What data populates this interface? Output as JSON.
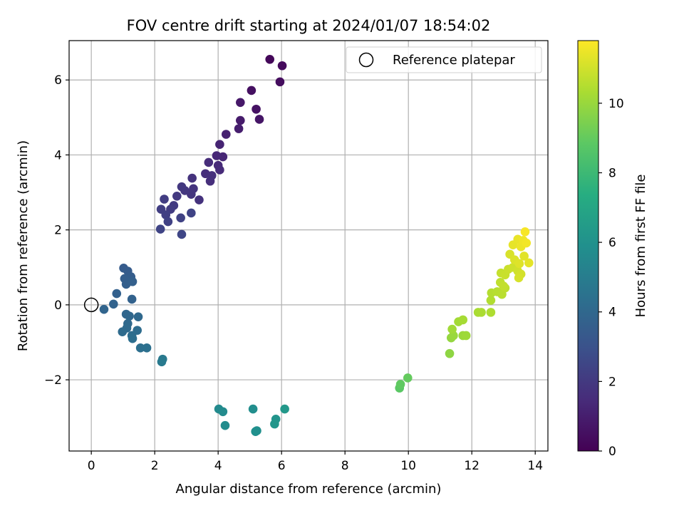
{
  "chart_data": {
    "type": "scatter",
    "title": "FOV centre drift starting at 2024/01/07 18:54:02",
    "xlabel": "Angular distance from reference (arcmin)",
    "ylabel": "Rotation from reference (arcmin)",
    "xlim": [
      -0.7,
      14.4
    ],
    "ylim": [
      -3.9,
      7.05
    ],
    "xticks": [
      0,
      2,
      4,
      6,
      8,
      10,
      12,
      14
    ],
    "yticks": [
      -2,
      0,
      2,
      4,
      6
    ],
    "xtick_labels": [
      "0",
      "2",
      "4",
      "6",
      "8",
      "10",
      "12",
      "14"
    ],
    "ytick_labels": [
      "−2",
      "0",
      "2",
      "4",
      "6"
    ],
    "grid": true,
    "legend": {
      "position": "top-right",
      "entries": [
        "Reference platepar"
      ]
    },
    "colorbar": {
      "label": "Hours from first FF file",
      "colormap": "viridis",
      "range": [
        0,
        11.8
      ],
      "ticks": [
        0,
        2,
        4,
        6,
        8,
        10
      ],
      "tick_labels": [
        "0",
        "2",
        "4",
        "6",
        "8",
        "10"
      ]
    },
    "reference_point": {
      "x": 0,
      "y": 0
    },
    "points": [
      {
        "x": 5.63,
        "y": 6.55,
        "h": 0.2
      },
      {
        "x": 6.02,
        "y": 6.38,
        "h": 0.3
      },
      {
        "x": 5.95,
        "y": 5.95,
        "h": 0.4
      },
      {
        "x": 5.05,
        "y": 5.72,
        "h": 0.5
      },
      {
        "x": 5.2,
        "y": 5.22,
        "h": 0.6
      },
      {
        "x": 5.3,
        "y": 4.95,
        "h": 0.7
      },
      {
        "x": 4.7,
        "y": 5.4,
        "h": 0.8
      },
      {
        "x": 4.7,
        "y": 4.92,
        "h": 0.9
      },
      {
        "x": 4.65,
        "y": 4.7,
        "h": 1.0
      },
      {
        "x": 4.25,
        "y": 4.55,
        "h": 1.1
      },
      {
        "x": 4.05,
        "y": 4.28,
        "h": 1.2
      },
      {
        "x": 4.15,
        "y": 3.95,
        "h": 1.3
      },
      {
        "x": 3.95,
        "y": 3.98,
        "h": 1.35
      },
      {
        "x": 4.0,
        "y": 3.72,
        "h": 1.4
      },
      {
        "x": 4.05,
        "y": 3.6,
        "h": 1.45
      },
      {
        "x": 3.7,
        "y": 3.8,
        "h": 1.5
      },
      {
        "x": 3.6,
        "y": 3.5,
        "h": 1.55
      },
      {
        "x": 3.75,
        "y": 3.3,
        "h": 1.6
      },
      {
        "x": 3.8,
        "y": 3.45,
        "h": 1.65
      },
      {
        "x": 3.4,
        "y": 2.8,
        "h": 1.7
      },
      {
        "x": 3.18,
        "y": 3.38,
        "h": 1.75
      },
      {
        "x": 3.22,
        "y": 3.1,
        "h": 1.8
      },
      {
        "x": 3.15,
        "y": 2.95,
        "h": 1.85
      },
      {
        "x": 2.95,
        "y": 3.05,
        "h": 1.9
      },
      {
        "x": 2.85,
        "y": 3.15,
        "h": 1.95
      },
      {
        "x": 2.7,
        "y": 2.9,
        "h": 2.0
      },
      {
        "x": 2.6,
        "y": 2.65,
        "h": 2.05
      },
      {
        "x": 2.5,
        "y": 2.55,
        "h": 2.1
      },
      {
        "x": 2.3,
        "y": 2.82,
        "h": 2.15
      },
      {
        "x": 2.2,
        "y": 2.55,
        "h": 2.2
      },
      {
        "x": 2.35,
        "y": 2.4,
        "h": 2.25
      },
      {
        "x": 2.42,
        "y": 2.22,
        "h": 2.3
      },
      {
        "x": 2.82,
        "y": 2.32,
        "h": 2.35
      },
      {
        "x": 3.15,
        "y": 2.45,
        "h": 2.4
      },
      {
        "x": 2.18,
        "y": 2.02,
        "h": 2.45
      },
      {
        "x": 2.85,
        "y": 1.88,
        "h": 2.5
      },
      {
        "x": 1.02,
        "y": 0.98,
        "h": 3.4
      },
      {
        "x": 1.15,
        "y": 0.9,
        "h": 3.45
      },
      {
        "x": 1.25,
        "y": 0.75,
        "h": 3.5
      },
      {
        "x": 1.05,
        "y": 0.7,
        "h": 3.55
      },
      {
        "x": 1.1,
        "y": 0.55,
        "h": 3.6
      },
      {
        "x": 1.3,
        "y": 0.62,
        "h": 3.65
      },
      {
        "x": 0.8,
        "y": 0.3,
        "h": 3.7
      },
      {
        "x": 1.28,
        "y": 0.15,
        "h": 3.75
      },
      {
        "x": 0.7,
        "y": 0.02,
        "h": 3.8
      },
      {
        "x": 0.4,
        "y": -0.12,
        "h": 3.85
      },
      {
        "x": 1.1,
        "y": -0.25,
        "h": 3.9
      },
      {
        "x": 1.2,
        "y": -0.3,
        "h": 3.95
      },
      {
        "x": 1.48,
        "y": -0.32,
        "h": 4.0
      },
      {
        "x": 1.15,
        "y": -0.5,
        "h": 4.05
      },
      {
        "x": 1.12,
        "y": -0.62,
        "h": 4.1
      },
      {
        "x": 0.98,
        "y": -0.72,
        "h": 4.15
      },
      {
        "x": 1.45,
        "y": -0.68,
        "h": 4.2
      },
      {
        "x": 1.28,
        "y": -0.82,
        "h": 4.25
      },
      {
        "x": 1.3,
        "y": -0.9,
        "h": 4.3
      },
      {
        "x": 1.55,
        "y": -1.15,
        "h": 4.35
      },
      {
        "x": 1.75,
        "y": -1.15,
        "h": 4.4
      },
      {
        "x": 2.25,
        "y": -1.45,
        "h": 4.8
      },
      {
        "x": 2.22,
        "y": -1.52,
        "h": 4.85
      },
      {
        "x": 4.02,
        "y": -2.78,
        "h": 5.6
      },
      {
        "x": 4.15,
        "y": -2.85,
        "h": 5.65
      },
      {
        "x": 4.22,
        "y": -3.22,
        "h": 5.7
      },
      {
        "x": 5.1,
        "y": -2.78,
        "h": 5.8
      },
      {
        "x": 5.18,
        "y": -3.38,
        "h": 5.85
      },
      {
        "x": 5.22,
        "y": -3.36,
        "h": 5.9
      },
      {
        "x": 5.82,
        "y": -3.05,
        "h": 6.1
      },
      {
        "x": 5.78,
        "y": -3.18,
        "h": 6.2
      },
      {
        "x": 6.1,
        "y": -2.78,
        "h": 6.3
      },
      {
        "x": 9.72,
        "y": -2.22,
        "h": 8.8
      },
      {
        "x": 9.75,
        "y": -2.12,
        "h": 8.9
      },
      {
        "x": 9.98,
        "y": -1.95,
        "h": 9.0
      },
      {
        "x": 11.3,
        "y": -1.3,
        "h": 9.8
      },
      {
        "x": 11.35,
        "y": -0.88,
        "h": 9.9
      },
      {
        "x": 11.42,
        "y": -0.82,
        "h": 10.0
      },
      {
        "x": 11.72,
        "y": -0.82,
        "h": 10.05
      },
      {
        "x": 11.82,
        "y": -0.82,
        "h": 10.1
      },
      {
        "x": 11.38,
        "y": -0.65,
        "h": 10.15
      },
      {
        "x": 11.58,
        "y": -0.45,
        "h": 10.2
      },
      {
        "x": 11.72,
        "y": -0.4,
        "h": 10.25
      },
      {
        "x": 12.2,
        "y": -0.2,
        "h": 10.3
      },
      {
        "x": 12.3,
        "y": -0.2,
        "h": 10.35
      },
      {
        "x": 12.6,
        "y": -0.2,
        "h": 10.4
      },
      {
        "x": 12.6,
        "y": 0.12,
        "h": 10.45
      },
      {
        "x": 12.62,
        "y": 0.32,
        "h": 10.5
      },
      {
        "x": 12.8,
        "y": 0.35,
        "h": 10.55
      },
      {
        "x": 12.95,
        "y": 0.28,
        "h": 10.6
      },
      {
        "x": 13.05,
        "y": 0.45,
        "h": 10.65
      },
      {
        "x": 12.9,
        "y": 0.6,
        "h": 10.7
      },
      {
        "x": 13.0,
        "y": 0.5,
        "h": 10.75
      },
      {
        "x": 12.92,
        "y": 0.85,
        "h": 10.8
      },
      {
        "x": 13.05,
        "y": 0.8,
        "h": 10.85
      },
      {
        "x": 13.15,
        "y": 0.95,
        "h": 10.9
      },
      {
        "x": 13.3,
        "y": 1.0,
        "h": 10.95
      },
      {
        "x": 13.45,
        "y": 0.9,
        "h": 11.0
      },
      {
        "x": 13.55,
        "y": 0.82,
        "h": 11.05
      },
      {
        "x": 13.48,
        "y": 0.72,
        "h": 11.1
      },
      {
        "x": 13.2,
        "y": 1.35,
        "h": 11.15
      },
      {
        "x": 13.35,
        "y": 1.2,
        "h": 11.2
      },
      {
        "x": 13.5,
        "y": 1.1,
        "h": 11.25
      },
      {
        "x": 13.65,
        "y": 1.3,
        "h": 11.3
      },
      {
        "x": 13.8,
        "y": 1.12,
        "h": 11.35
      },
      {
        "x": 13.3,
        "y": 1.6,
        "h": 11.4
      },
      {
        "x": 13.45,
        "y": 1.75,
        "h": 11.45
      },
      {
        "x": 13.55,
        "y": 1.55,
        "h": 11.5
      },
      {
        "x": 13.62,
        "y": 1.72,
        "h": 11.55
      },
      {
        "x": 13.72,
        "y": 1.65,
        "h": 11.6
      },
      {
        "x": 13.68,
        "y": 1.95,
        "h": 11.7
      }
    ]
  }
}
